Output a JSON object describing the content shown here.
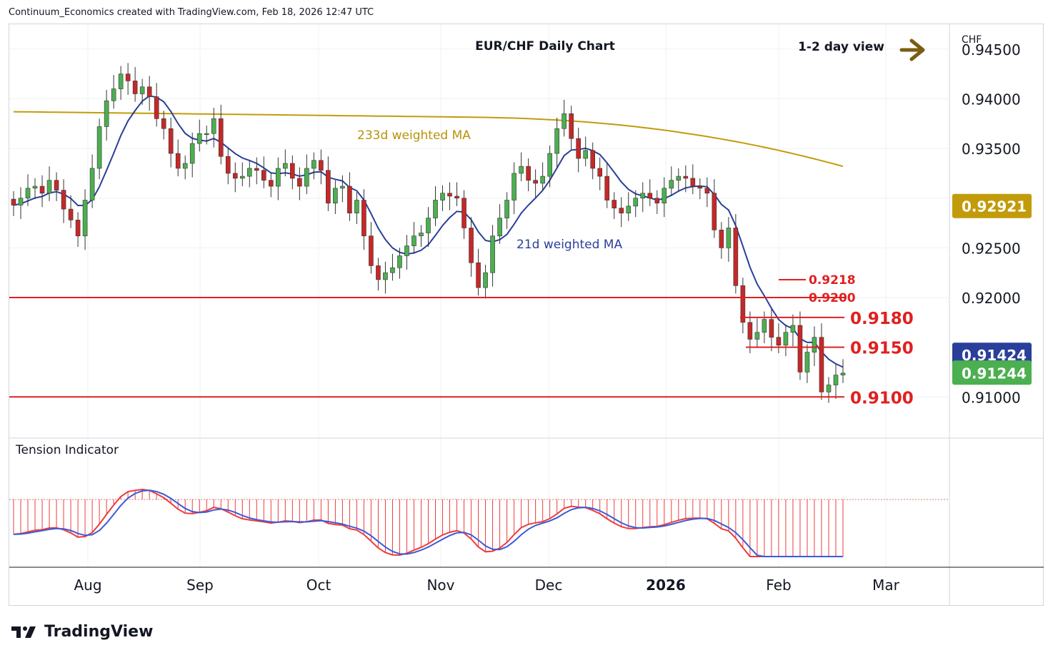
{
  "header": {
    "credit": "Continuum_Economics created with TradingView.com, Feb 18, 2026 12:47 UTC"
  },
  "footer": {
    "brand": "TradingView"
  },
  "chart_data": {
    "type": "candlestick",
    "title": "EUR/CHF Daily Chart",
    "view_label": "1-2 day view",
    "view_arrow_color": "#7a5c12",
    "currency_label": "CHF",
    "price_axis": {
      "ticks": [
        "0.94500",
        "0.94000",
        "0.93500",
        "0.92500",
        "0.92000",
        "0.91000"
      ],
      "range": [
        0.906,
        0.9475
      ]
    },
    "time_axis": {
      "labels": [
        "Aug",
        "Sep",
        "Oct",
        "Nov",
        "Dec",
        "2026",
        "Feb",
        "Mar"
      ],
      "bold_label": "2026"
    },
    "grid": true,
    "colors": {
      "up": "#4caf50",
      "down": "#c62828",
      "wick": "#333333",
      "ma21": "#2a3f9a",
      "ma233": "#c29b0b",
      "level": "#e02020",
      "tension_fast": "#ef3b3b",
      "tension_slow": "#3a5bd9"
    },
    "price_badges": [
      {
        "value": "0.92921",
        "color": "#c29b0b"
      },
      {
        "value": "0.91424",
        "color": "#2a3f9a"
      },
      {
        "value": "0.91244",
        "color": "#4caf50"
      }
    ],
    "annotations": {
      "ma233_label": "233d weighted MA",
      "ma21_label": "21d weighted MA",
      "levels": [
        {
          "label": "0.9218",
          "value": 0.9218,
          "style": "small"
        },
        {
          "label": "0.9200",
          "value": 0.92,
          "style": "small"
        },
        {
          "label": "0.9180",
          "value": 0.918,
          "style": "big"
        },
        {
          "label": "0.9150",
          "value": 0.915,
          "style": "big"
        },
        {
          "label": "0.9100",
          "value": 0.91,
          "style": "big"
        }
      ],
      "horizontal_lines": [
        0.92,
        0.91
      ]
    },
    "indicator": {
      "title": "Tension Indicator"
    },
    "series": [
      {
        "name": "EUR/CHF",
        "ohlc_closes": [
          0.9293,
          0.93,
          0.931,
          0.9312,
          0.9305,
          0.9318,
          0.9308,
          0.9289,
          0.9278,
          0.9262,
          0.9298,
          0.933,
          0.9372,
          0.9398,
          0.941,
          0.9425,
          0.9418,
          0.9405,
          0.9412,
          0.9402,
          0.938,
          0.937,
          0.9345,
          0.933,
          0.9335,
          0.9355,
          0.9365,
          0.9365,
          0.938,
          0.9342,
          0.9325,
          0.932,
          0.9322,
          0.933,
          0.9328,
          0.9318,
          0.9312,
          0.933,
          0.9335,
          0.932,
          0.9312,
          0.933,
          0.9338,
          0.9328,
          0.9295,
          0.931,
          0.9312,
          0.9285,
          0.9298,
          0.9262,
          0.9232,
          0.9218,
          0.9225,
          0.923,
          0.9242,
          0.9252,
          0.9262,
          0.9265,
          0.928,
          0.9298,
          0.9305,
          0.9302,
          0.93,
          0.927,
          0.9235,
          0.921,
          0.9225,
          0.9262,
          0.928,
          0.9298,
          0.9325,
          0.9332,
          0.9318,
          0.9315,
          0.9322,
          0.9345,
          0.937,
          0.9385,
          0.936,
          0.934,
          0.9348,
          0.933,
          0.9322,
          0.9298,
          0.929,
          0.9285,
          0.9292,
          0.93,
          0.9305,
          0.93,
          0.9295,
          0.931,
          0.9318,
          0.9322,
          0.932,
          0.9312,
          0.931,
          0.9305,
          0.9268,
          0.925,
          0.927,
          0.9212,
          0.9175,
          0.9158,
          0.9165,
          0.9178,
          0.916,
          0.9152,
          0.9165,
          0.9172,
          0.9125,
          0.9145,
          0.916,
          0.9105,
          0.9112,
          0.9122,
          0.9124
        ]
      }
    ]
  }
}
